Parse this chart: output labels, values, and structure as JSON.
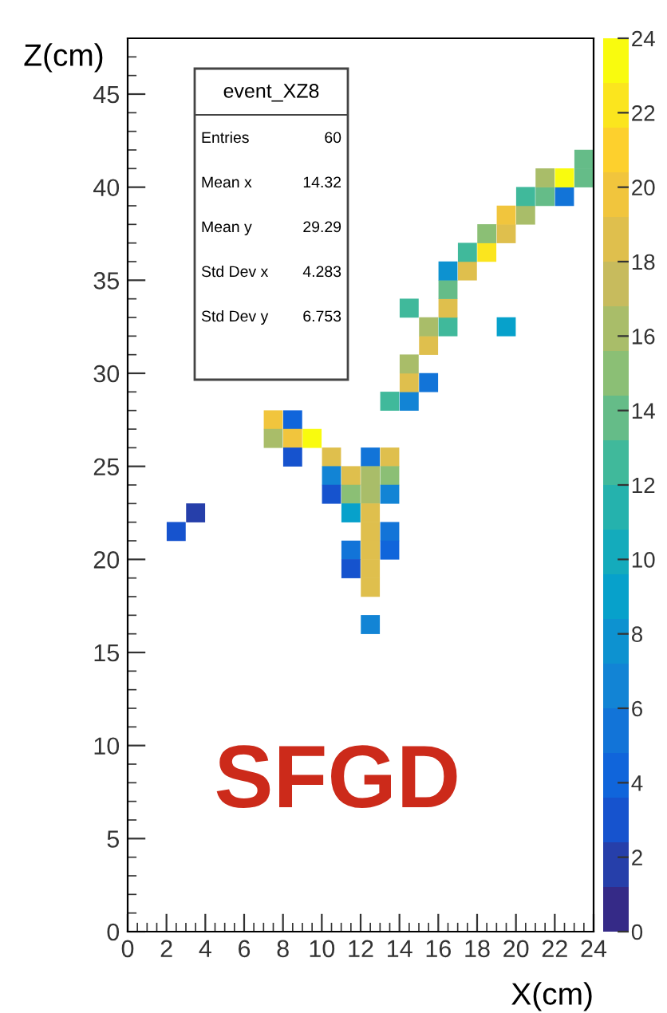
{
  "chart_data": {
    "type": "scatter",
    "xlabel": "X(cm)",
    "ylabel": "Z(cm)",
    "x": [
      7.5,
      8.5,
      7.5,
      8.5,
      9.5,
      8.5,
      10.5,
      12.5,
      13.5,
      10.5,
      11.5,
      12.5,
      13.5,
      10.5,
      11.5,
      12.5,
      13.5,
      3.5,
      11.5,
      12.5,
      2.5,
      12.5,
      13.5,
      11.5,
      12.5,
      13.5,
      11.5,
      12.5,
      12.5,
      12.5,
      13.5,
      14.5,
      14.5,
      15.5,
      14.5,
      15.5,
      15.5,
      16.5,
      19.5,
      14.5,
      16.5,
      16.5,
      16.5,
      17.5,
      17.5,
      18.5,
      18.5,
      19.5,
      19.5,
      20.5,
      20.5,
      21.5,
      22.5,
      21.5,
      22.5,
      23.5,
      23.5
    ],
    "values": [
      27.5,
      27.5,
      26.5,
      26.5,
      26.5,
      25.5,
      25.5,
      25.5,
      25.5,
      24.5,
      24.5,
      24.5,
      24.5,
      23.5,
      23.5,
      23.5,
      23.5,
      22.5,
      22.5,
      22.5,
      21.5,
      21.5,
      21.5,
      20.5,
      20.5,
      20.5,
      19.5,
      19.5,
      18.5,
      16.5,
      28.5,
      28.5,
      29.5,
      29.5,
      30.5,
      31.5,
      32.5,
      32.5,
      32.5,
      33.5,
      33.5,
      34.5,
      35.5,
      35.5,
      36.5,
      36.5,
      37.5,
      37.5,
      38.5,
      38.5,
      39.5,
      39.5,
      39.5,
      40.5,
      40.5,
      40.5,
      41.5
    ],
    "cvalues": [
      20,
      4,
      16,
      20,
      23,
      3,
      19,
      5,
      18,
      7,
      18,
      16,
      15,
      3,
      15,
      16,
      7,
      2,
      9,
      19,
      3,
      19,
      5,
      5,
      18,
      4,
      3,
      19,
      19,
      6,
      13,
      7,
      19,
      5,
      16,
      18,
      16,
      13,
      9,
      13,
      19,
      14,
      8,
      18,
      12,
      22,
      15,
      18,
      20,
      16,
      13,
      14,
      5,
      16,
      23,
      14,
      14
    ],
    "marker": "square",
    "xlim": [
      0,
      24
    ],
    "xticks": [
      0,
      2,
      4,
      6,
      8,
      10,
      12,
      14,
      16,
      18,
      20,
      22,
      24
    ],
    "ylim": [
      0,
      48
    ],
    "yticks": [
      0,
      5,
      10,
      15,
      20,
      25,
      30,
      35,
      40,
      45
    ],
    "clim": [
      0,
      24
    ],
    "cticks": [
      0,
      2,
      4,
      6,
      8,
      10,
      12,
      14,
      16,
      18,
      20,
      22,
      24
    ],
    "grid": false,
    "annotations": [
      "event_XZ8",
      "Entries",
      "60",
      "Mean x",
      "14.32",
      "Mean y",
      "29.29",
      "Std Dev x",
      "4.283",
      "Std Dev y",
      "6.753",
      "SFGD"
    ]
  }
}
